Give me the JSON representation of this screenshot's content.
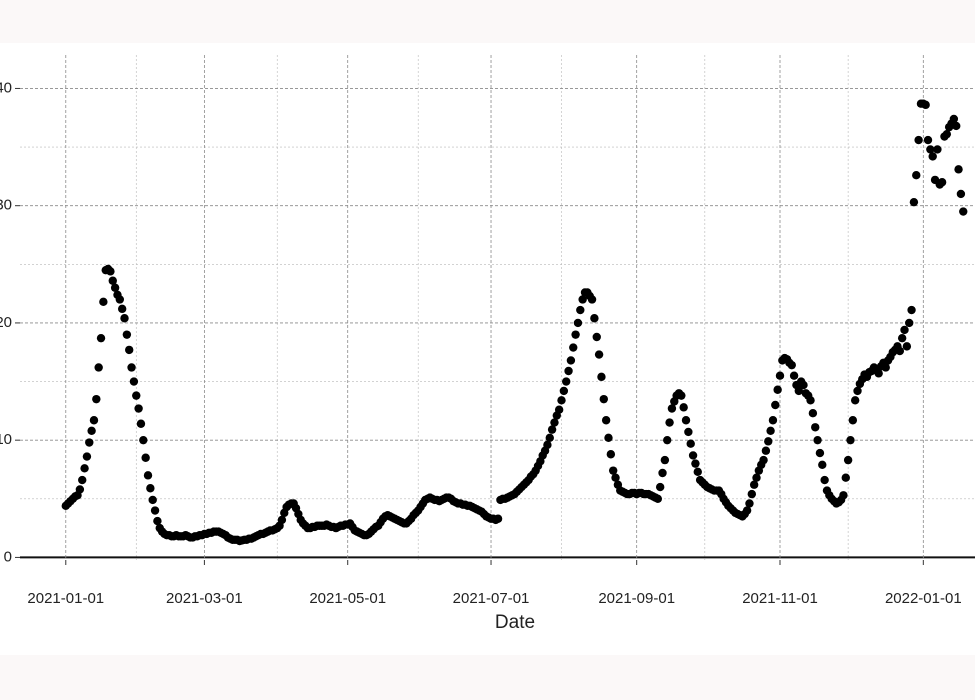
{
  "chart_data": {
    "type": "scatter",
    "x_label": "Date",
    "x": [
      "2021-01-01",
      "2021-01-02",
      "2021-01-03",
      "2021-01-04",
      "2021-01-05",
      "2021-01-06",
      "2021-01-07",
      "2021-01-08",
      "2021-01-09",
      "2021-01-10",
      "2021-01-11",
      "2021-01-12",
      "2021-01-13",
      "2021-01-14",
      "2021-01-15",
      "2021-01-16",
      "2021-01-17",
      "2021-01-18",
      "2021-01-19",
      "2021-01-20",
      "2021-01-21",
      "2021-01-22",
      "2021-01-23",
      "2021-01-24",
      "2021-01-25",
      "2021-01-26",
      "2021-01-27",
      "2021-01-28",
      "2021-01-29",
      "2021-01-30",
      "2021-01-31",
      "2021-02-01",
      "2021-02-02",
      "2021-02-03",
      "2021-02-04",
      "2021-02-05",
      "2021-02-06",
      "2021-02-07",
      "2021-02-08",
      "2021-02-09",
      "2021-02-10",
      "2021-02-11",
      "2021-02-12",
      "2021-02-13",
      "2021-02-14",
      "2021-02-15",
      "2021-02-16",
      "2021-02-17",
      "2021-02-18",
      "2021-02-19",
      "2021-02-20",
      "2021-02-21",
      "2021-02-22",
      "2021-02-23",
      "2021-02-24",
      "2021-02-25",
      "2021-02-26",
      "2021-02-27",
      "2021-02-28",
      "2021-03-01",
      "2021-03-02",
      "2021-03-03",
      "2021-03-04",
      "2021-03-05",
      "2021-03-06",
      "2021-03-07",
      "2021-03-08",
      "2021-03-09",
      "2021-03-10",
      "2021-03-11",
      "2021-03-12",
      "2021-03-13",
      "2021-03-14",
      "2021-03-15",
      "2021-03-16",
      "2021-03-17",
      "2021-03-18",
      "2021-03-19",
      "2021-03-20",
      "2021-03-21",
      "2021-03-22",
      "2021-03-23",
      "2021-03-24",
      "2021-03-25",
      "2021-03-26",
      "2021-03-27",
      "2021-03-28",
      "2021-03-29",
      "2021-03-30",
      "2021-03-31",
      "2021-04-01",
      "2021-04-02",
      "2021-04-03",
      "2021-04-04",
      "2021-04-05",
      "2021-04-06",
      "2021-04-07",
      "2021-04-08",
      "2021-04-09",
      "2021-04-10",
      "2021-04-11",
      "2021-04-12",
      "2021-04-13",
      "2021-04-14",
      "2021-04-15",
      "2021-04-16",
      "2021-04-17",
      "2021-04-18",
      "2021-04-19",
      "2021-04-20",
      "2021-04-21",
      "2021-04-22",
      "2021-04-23",
      "2021-04-24",
      "2021-04-25",
      "2021-04-26",
      "2021-04-27",
      "2021-04-28",
      "2021-04-29",
      "2021-04-30",
      "2021-05-01",
      "2021-05-02",
      "2021-05-03",
      "2021-05-04",
      "2021-05-05",
      "2021-05-06",
      "2021-05-07",
      "2021-05-08",
      "2021-05-09",
      "2021-05-10",
      "2021-05-11",
      "2021-05-12",
      "2021-05-13",
      "2021-05-14",
      "2021-05-15",
      "2021-05-16",
      "2021-05-17",
      "2021-05-18",
      "2021-05-19",
      "2021-05-20",
      "2021-05-21",
      "2021-05-22",
      "2021-05-23",
      "2021-05-24",
      "2021-05-25",
      "2021-05-26",
      "2021-05-27",
      "2021-05-28",
      "2021-05-29",
      "2021-05-30",
      "2021-05-31",
      "2021-06-01",
      "2021-06-02",
      "2021-06-03",
      "2021-06-04",
      "2021-06-05",
      "2021-06-06",
      "2021-06-07",
      "2021-06-08",
      "2021-06-09",
      "2021-06-10",
      "2021-06-11",
      "2021-06-12",
      "2021-06-13",
      "2021-06-14",
      "2021-06-15",
      "2021-06-16",
      "2021-06-17",
      "2021-06-18",
      "2021-06-19",
      "2021-06-20",
      "2021-06-21",
      "2021-06-22",
      "2021-06-23",
      "2021-06-24",
      "2021-06-25",
      "2021-06-26",
      "2021-06-27",
      "2021-06-28",
      "2021-06-29",
      "2021-06-30",
      "2021-07-01",
      "2021-07-02",
      "2021-07-03",
      "2021-07-04",
      "2021-07-05",
      "2021-07-06",
      "2021-07-07",
      "2021-07-08",
      "2021-07-09",
      "2021-07-10",
      "2021-07-11",
      "2021-07-12",
      "2021-07-13",
      "2021-07-14",
      "2021-07-15",
      "2021-07-16",
      "2021-07-17",
      "2021-07-18",
      "2021-07-19",
      "2021-07-20",
      "2021-07-21",
      "2021-07-22",
      "2021-07-23",
      "2021-07-24",
      "2021-07-25",
      "2021-07-26",
      "2021-07-27",
      "2021-07-28",
      "2021-07-29",
      "2021-07-30",
      "2021-07-31",
      "2021-08-01",
      "2021-08-02",
      "2021-08-03",
      "2021-08-04",
      "2021-08-05",
      "2021-08-06",
      "2021-08-07",
      "2021-08-08",
      "2021-08-09",
      "2021-08-10",
      "2021-08-11",
      "2021-08-12",
      "2021-08-13",
      "2021-08-14",
      "2021-08-15",
      "2021-08-16",
      "2021-08-17",
      "2021-08-18",
      "2021-08-19",
      "2021-08-20",
      "2021-08-21",
      "2021-08-22",
      "2021-08-23",
      "2021-08-24",
      "2021-08-25",
      "2021-08-26",
      "2021-08-27",
      "2021-08-28",
      "2021-08-29",
      "2021-08-30",
      "2021-08-31",
      "2021-09-01",
      "2021-09-02",
      "2021-09-03",
      "2021-09-04",
      "2021-09-05",
      "2021-09-06",
      "2021-09-07",
      "2021-09-08",
      "2021-09-09",
      "2021-09-10",
      "2021-09-11",
      "2021-09-12",
      "2021-09-13",
      "2021-09-14",
      "2021-09-15",
      "2021-09-16",
      "2021-09-17",
      "2021-09-18",
      "2021-09-19",
      "2021-09-20",
      "2021-09-21",
      "2021-09-22",
      "2021-09-23",
      "2021-09-24",
      "2021-09-25",
      "2021-09-26",
      "2021-09-27",
      "2021-09-28",
      "2021-09-29",
      "2021-09-30",
      "2021-10-01",
      "2021-10-02",
      "2021-10-03",
      "2021-10-04",
      "2021-10-05",
      "2021-10-06",
      "2021-10-07",
      "2021-10-08",
      "2021-10-09",
      "2021-10-10",
      "2021-10-11",
      "2021-10-12",
      "2021-10-13",
      "2021-10-14",
      "2021-10-15",
      "2021-10-16",
      "2021-10-17",
      "2021-10-18",
      "2021-10-19",
      "2021-10-20",
      "2021-10-21",
      "2021-10-22",
      "2021-10-23",
      "2021-10-24",
      "2021-10-25",
      "2021-10-26",
      "2021-10-27",
      "2021-10-28",
      "2021-10-29",
      "2021-10-30",
      "2021-10-31",
      "2021-11-01",
      "2021-11-02",
      "2021-11-03",
      "2021-11-04",
      "2021-11-05",
      "2021-11-06",
      "2021-11-07",
      "2021-11-08",
      "2021-11-09",
      "2021-11-10",
      "2021-11-11",
      "2021-11-12",
      "2021-11-13",
      "2021-11-14",
      "2021-11-15",
      "2021-11-16",
      "2021-11-17",
      "2021-11-18",
      "2021-11-19",
      "2021-11-20",
      "2021-11-21",
      "2021-11-22",
      "2021-11-23",
      "2021-11-24",
      "2021-11-25",
      "2021-11-26",
      "2021-11-27",
      "2021-11-28",
      "2021-11-29",
      "2021-11-30",
      "2021-12-01",
      "2021-12-02",
      "2021-12-03",
      "2021-12-04",
      "2021-12-05",
      "2021-12-06",
      "2021-12-07",
      "2021-12-08",
      "2021-12-09",
      "2021-12-10",
      "2021-12-11",
      "2021-12-12",
      "2021-12-13",
      "2021-12-14",
      "2021-12-15",
      "2021-12-16",
      "2021-12-17",
      "2021-12-18",
      "2021-12-19",
      "2021-12-20",
      "2021-12-21",
      "2021-12-22",
      "2021-12-23",
      "2021-12-24",
      "2021-12-25",
      "2021-12-26",
      "2021-12-27",
      "2021-12-28",
      "2021-12-29",
      "2021-12-30",
      "2021-12-31",
      "2022-01-01",
      "2022-01-02",
      "2022-01-03",
      "2022-01-04",
      "2022-01-05",
      "2022-01-06",
      "2022-01-07",
      "2022-01-08",
      "2022-01-09",
      "2022-01-10",
      "2022-01-11",
      "2022-01-12",
      "2022-01-13",
      "2022-01-14",
      "2022-01-15",
      "2022-01-16",
      "2022-01-17",
      "2022-01-18"
    ],
    "values": [
      4.4,
      4.6,
      4.8,
      5.0,
      5.2,
      5.3,
      5.8,
      6.6,
      7.6,
      8.6,
      9.8,
      10.8,
      11.7,
      13.5,
      16.2,
      18.7,
      21.8,
      24.5,
      24.6,
      24.4,
      23.6,
      23.0,
      22.4,
      22.0,
      21.2,
      20.4,
      19.0,
      17.7,
      16.2,
      15.0,
      13.8,
      12.7,
      11.4,
      10.0,
      8.5,
      7.0,
      5.9,
      4.9,
      4.0,
      3.1,
      2.5,
      2.2,
      2.0,
      1.9,
      1.9,
      1.8,
      1.8,
      1.9,
      1.8,
      1.8,
      1.8,
      1.9,
      1.8,
      1.7,
      1.7,
      1.8,
      1.8,
      1.9,
      1.9,
      2.0,
      2.0,
      2.1,
      2.1,
      2.2,
      2.2,
      2.2,
      2.1,
      2.0,
      1.9,
      1.7,
      1.6,
      1.5,
      1.5,
      1.5,
      1.4,
      1.45,
      1.5,
      1.5,
      1.6,
      1.6,
      1.7,
      1.8,
      1.9,
      2.0,
      2.0,
      2.1,
      2.2,
      2.3,
      2.3,
      2.4,
      2.5,
      2.7,
      3.2,
      3.8,
      4.3,
      4.5,
      4.6,
      4.6,
      4.2,
      3.7,
      3.2,
      2.9,
      2.7,
      2.5,
      2.5,
      2.6,
      2.6,
      2.7,
      2.7,
      2.7,
      2.7,
      2.8,
      2.7,
      2.6,
      2.6,
      2.5,
      2.6,
      2.7,
      2.7,
      2.8,
      2.8,
      2.9,
      2.6,
      2.3,
      2.2,
      2.1,
      2.0,
      1.9,
      1.9,
      2.0,
      2.2,
      2.4,
      2.6,
      2.7,
      3.0,
      3.3,
      3.5,
      3.6,
      3.5,
      3.4,
      3.3,
      3.2,
      3.1,
      3.0,
      2.9,
      2.9,
      3.1,
      3.3,
      3.6,
      3.8,
      4.0,
      4.3,
      4.6,
      4.9,
      5.0,
      5.1,
      5.0,
      4.9,
      4.9,
      4.8,
      4.9,
      5.0,
      5.1,
      5.1,
      5.0,
      4.8,
      4.7,
      4.6,
      4.6,
      4.5,
      4.5,
      4.4,
      4.4,
      4.3,
      4.2,
      4.1,
      4.0,
      3.9,
      3.7,
      3.5,
      3.4,
      3.3,
      3.3,
      3.2,
      3.3,
      4.9,
      5.0,
      5.0,
      5.1,
      5.2,
      5.3,
      5.4,
      5.6,
      5.8,
      6.0,
      6.2,
      6.4,
      6.6,
      6.9,
      7.1,
      7.4,
      7.8,
      8.2,
      8.7,
      9.1,
      9.6,
      10.2,
      10.9,
      11.5,
      12.1,
      12.6,
      13.4,
      14.2,
      15.0,
      15.9,
      16.8,
      17.9,
      19.0,
      20.0,
      21.1,
      22.0,
      22.6,
      22.6,
      22.3,
      22.0,
      20.4,
      18.8,
      17.3,
      15.4,
      13.5,
      11.7,
      10.2,
      8.8,
      7.4,
      6.8,
      6.2,
      5.7,
      5.6,
      5.5,
      5.4,
      5.4,
      5.5,
      5.5,
      5.4,
      5.5,
      5.5,
      5.4,
      5.4,
      5.4,
      5.3,
      5.2,
      5.1,
      5.0,
      6.0,
      7.2,
      8.3,
      10.0,
      11.5,
      12.7,
      13.3,
      13.8,
      14.0,
      13.8,
      12.8,
      11.7,
      10.7,
      9.7,
      8.7,
      8.0,
      7.3,
      6.6,
      6.4,
      6.2,
      6.0,
      5.9,
      5.8,
      5.7,
      5.7,
      5.7,
      5.4,
      5.0,
      4.7,
      4.4,
      4.2,
      4.0,
      3.8,
      3.7,
      3.6,
      3.5,
      3.7,
      4.0,
      4.6,
      5.4,
      6.2,
      6.8,
      7.4,
      7.9,
      8.3,
      9.1,
      9.9,
      10.8,
      11.7,
      13.0,
      14.3,
      15.5,
      16.8,
      17.0,
      16.9,
      16.6,
      16.4,
      15.5,
      14.7,
      14.2,
      15.0,
      14.7,
      14.0,
      13.8,
      13.4,
      12.3,
      11.1,
      10.0,
      8.9,
      7.9,
      6.6,
      5.7,
      5.3,
      5.0,
      4.8,
      4.6,
      4.7,
      4.9,
      5.3,
      6.8,
      8.3,
      10.0,
      11.7,
      13.4,
      14.2,
      14.8,
      15.2,
      15.6,
      15.4,
      15.8,
      15.9,
      16.2,
      16.0,
      15.7,
      16.3,
      16.6,
      16.2,
      16.8,
      17.1,
      17.5,
      17.7,
      18.0,
      17.6,
      18.7,
      19.4,
      18.0,
      20.0,
      21.1,
      30.3,
      32.6,
      35.6,
      38.7,
      38.7,
      38.6,
      35.6,
      34.8,
      34.2,
      32.2,
      34.8,
      31.8,
      32.0,
      35.9,
      36.1,
      36.7,
      37.0,
      37.4,
      36.8,
      33.1,
      31.0,
      29.5
    ],
    "color": "#000000",
    "xlim": [
      "2020-12-04",
      "2022-01-23"
    ],
    "xticks": [
      "2021-01-01",
      "2021-03-01",
      "2021-05-01",
      "2021-07-01",
      "2021-09-01",
      "2021-11-01",
      "2022-01-01"
    ],
    "xminorticks": [
      "2021-01-31",
      "2021-04-01",
      "2021-05-31",
      "2021-07-31",
      "2021-09-30",
      "2021-11-30"
    ],
    "ylim": [
      -1.5,
      42
    ],
    "yticks": [
      0,
      10,
      20,
      30,
      40
    ],
    "yminorticks": [
      5,
      15,
      25,
      35
    ],
    "grid": true
  }
}
